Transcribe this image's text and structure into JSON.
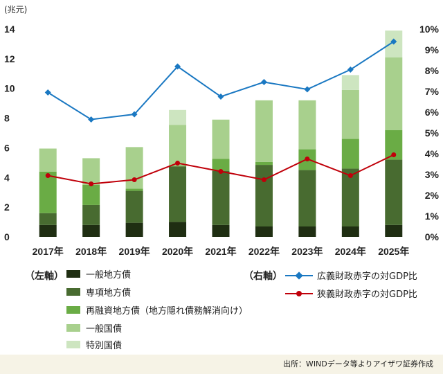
{
  "colors": {
    "local_general": "#1f2e12",
    "local_special": "#486b30",
    "local_refinance": "#6aac45",
    "gov_general": "#a8d08d",
    "gov_special": "#cde5c0",
    "broad_line": "#1a78c2",
    "narrow_line": "#c0000a"
  },
  "chart_data": {
    "type": "bar",
    "stacked": true,
    "left_unit": "(兆元)",
    "categories": [
      "2017年",
      "2018年",
      "2019年",
      "2020年",
      "2021年",
      "2022年",
      "2023年",
      "2024年",
      "2025年"
    ],
    "ylim": [
      0,
      14
    ],
    "y_ticks": [
      "0",
      "2",
      "4",
      "6",
      "8",
      "10",
      "12",
      "14"
    ],
    "y2lim": [
      0,
      10
    ],
    "y2_ticks": [
      "0%",
      "1%",
      "2%",
      "3%",
      "4%",
      "5%",
      "6%",
      "7%",
      "8%",
      "9%",
      "10%"
    ],
    "grid": false,
    "series": [
      {
        "name": "一般地方債",
        "axis": "left",
        "color_key": "local_general",
        "values": [
          0.8,
          0.8,
          0.95,
          1.0,
          0.8,
          0.7,
          0.7,
          0.7,
          0.8
        ]
      },
      {
        "name": "専項地方債",
        "axis": "left",
        "color_key": "local_special",
        "values": [
          0.8,
          1.35,
          2.15,
          3.75,
          3.65,
          4.15,
          3.8,
          3.9,
          4.4
        ]
      },
      {
        "name": "再融資地方債（地方隠れ債務解消向け）",
        "axis": "left",
        "color_key": "local_refinance",
        "values": [
          2.8,
          1.35,
          0.15,
          0.05,
          0.8,
          0.2,
          1.4,
          2.0,
          2.0
        ]
      },
      {
        "name": "一般国債",
        "axis": "left",
        "color_key": "gov_general",
        "values": [
          1.55,
          1.8,
          2.8,
          2.75,
          2.65,
          4.15,
          3.3,
          3.3,
          4.9
        ]
      },
      {
        "name": "特別国債",
        "axis": "left",
        "color_key": "gov_special",
        "values": [
          0,
          0,
          0,
          1.0,
          0,
          0,
          0,
          1.0,
          1.8
        ]
      }
    ],
    "lines": [
      {
        "name": "広義財政赤字の対GDP比",
        "axis": "right",
        "color_key": "broad_line",
        "marker": "diamond",
        "values": [
          6.95,
          5.65,
          5.9,
          8.2,
          6.75,
          7.45,
          7.1,
          8.05,
          9.4
        ]
      },
      {
        "name": "狭義財政赤字の対GDP比",
        "axis": "right",
        "color_key": "narrow_line",
        "marker": "circle",
        "values": [
          2.95,
          2.55,
          2.75,
          3.55,
          3.15,
          2.75,
          3.75,
          2.95,
          3.95
        ]
      }
    ]
  },
  "legend": {
    "left_title": "（左軸）",
    "right_title": "（右軸）"
  },
  "footer": {
    "source": "出所：WINDデータ等よりアイザワ証券作成"
  }
}
